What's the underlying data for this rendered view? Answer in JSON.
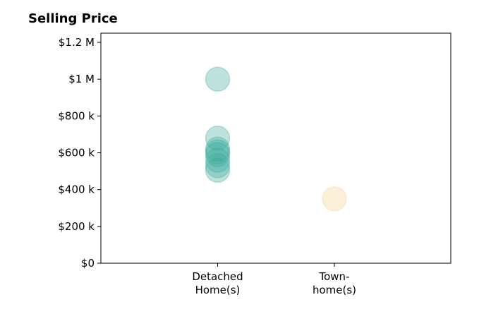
{
  "chart_data": {
    "type": "scatter",
    "title": "Selling Price",
    "xlabel": "",
    "ylabel": "",
    "categories": [
      [
        "Detached",
        "Home(s)"
      ],
      [
        "Town-",
        "home(s)"
      ]
    ],
    "y_ticks": [
      0,
      200000,
      400000,
      600000,
      800000,
      1000000,
      1200000
    ],
    "y_tick_labels": [
      "$0",
      "$200 k",
      "$400 k",
      "$600 k",
      "$800 k",
      "$1 M",
      "$1.2 M"
    ],
    "ylim": [
      0,
      1250000
    ],
    "grid": false,
    "series": [
      {
        "category": 0,
        "color": "#3aaa9c",
        "values": [
          1000000,
          680000,
          620000,
          605000,
          590000,
          560000,
          530000,
          505000
        ]
      },
      {
        "category": 1,
        "color": "#efd28f",
        "values": [
          350000
        ]
      }
    ]
  }
}
